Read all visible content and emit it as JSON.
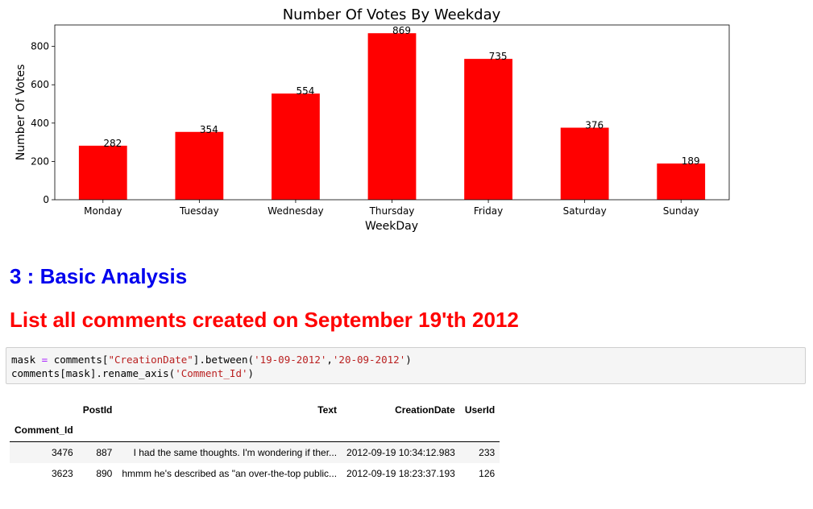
{
  "chart_data": {
    "type": "bar",
    "title": "Number Of Votes By Weekday",
    "xlabel": "WeekDay",
    "ylabel": "Number Of Votes",
    "categories": [
      "Monday",
      "Tuesday",
      "Wednesday",
      "Thursday",
      "Friday",
      "Saturday",
      "Sunday"
    ],
    "values": [
      282,
      354,
      554,
      869,
      735,
      376,
      189
    ],
    "ylim": [
      0,
      912
    ],
    "yticks": [
      0,
      200,
      400,
      600,
      800
    ],
    "bar_color": "#ff0000",
    "grid": false,
    "data_labels": true
  },
  "headings": {
    "basic": "3 : Basic Analysis",
    "list": "List all comments created on September 19'th 2012"
  },
  "code": {
    "l1_a": "mask ",
    "l1_op": "=",
    "l1_b": " comments[",
    "l1_s1": "\"CreationDate\"",
    "l1_c": "].between(",
    "l1_s2": "'19-09-2012'",
    "l1_d": ",",
    "l1_s3": "'20-09-2012'",
    "l1_e": ")",
    "l2_a": "comments[mask].rename_axis(",
    "l2_s": "'Comment_Id'",
    "l2_b": ")"
  },
  "table": {
    "columns": [
      "PostId",
      "Text",
      "CreationDate",
      "UserId"
    ],
    "index_name": "Comment_Id",
    "rows": [
      {
        "id": "3476",
        "postid": "887",
        "text": "I had the same thoughts. I'm wondering if ther...",
        "date": "2012-09-19 10:34:12.983",
        "userid": "233"
      },
      {
        "id": "3623",
        "postid": "890",
        "text": "hmmm he's described as \"an over-the-top public...",
        "date": "2012-09-19 18:23:37.193",
        "userid": "126"
      }
    ]
  }
}
